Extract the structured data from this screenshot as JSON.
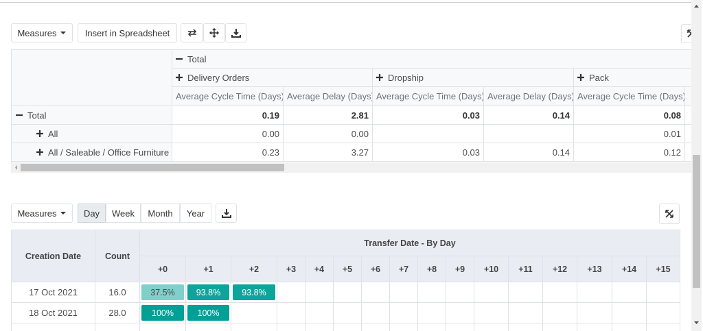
{
  "pivot": {
    "toolbar": {
      "measures": "Measures",
      "insert": "Insert in Spreadsheet"
    },
    "header": {
      "total": "Total",
      "groups": [
        "Delivery Orders",
        "Dropship",
        "Pack"
      ],
      "measures": [
        "Average Cycle Time (Days)",
        "Average Delay (Days)",
        "Average Cycle Time (Days)",
        "Average Delay (Days)",
        "Average Cycle Time (Days)"
      ]
    },
    "rows": [
      {
        "label": "Total",
        "open": true,
        "cells": [
          "0.19",
          "2.81",
          "0.03",
          "0.14",
          "0.08"
        ]
      },
      {
        "label": "All",
        "open": false,
        "cells": [
          "0.00",
          "0.00",
          null,
          null,
          "0.01"
        ]
      },
      {
        "label": "All / Saleable / Office Furniture",
        "open": false,
        "cells": [
          "0.23",
          "3.27",
          "0.03",
          "0.14",
          "0.12"
        ]
      }
    ]
  },
  "cohort": {
    "toolbar": {
      "measures": "Measures",
      "intervals": [
        "Day",
        "Week",
        "Month",
        "Year"
      ],
      "active": "Day"
    },
    "header": {
      "date": "Creation Date",
      "count": "Count",
      "title": "Transfer Date - By Day",
      "periods": [
        "+0",
        "+1",
        "+2",
        "+3",
        "+4",
        "+5",
        "+6",
        "+7",
        "+8",
        "+9",
        "+10",
        "+11",
        "+12",
        "+13",
        "+14",
        "+15"
      ]
    },
    "rows": [
      {
        "date": "17 Oct 2021",
        "count": "16.0",
        "cells": [
          "37.5%",
          "93.8%",
          "93.8%"
        ]
      },
      {
        "date": "18 Oct 2021",
        "count": "28.0",
        "cells": [
          "100%",
          "100%"
        ]
      }
    ]
  }
}
